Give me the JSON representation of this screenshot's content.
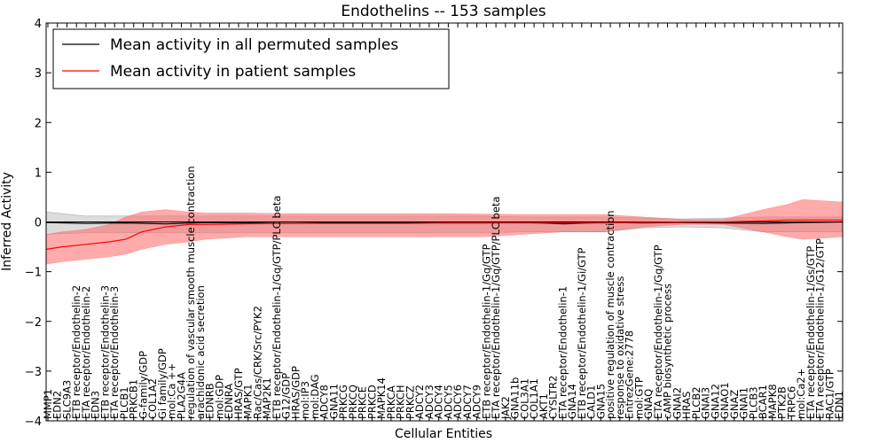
{
  "chart_data": {
    "type": "line",
    "title": "Endothelins -- 153 samples",
    "xlabel": "Cellular Entities",
    "ylabel": "Inferred Activity",
    "ylim": [
      -4,
      4
    ],
    "yticks": [
      "4",
      "3",
      "2",
      "1",
      "0",
      "−1",
      "−2",
      "−3",
      "−4"
    ],
    "ytick_values": [
      4,
      3,
      2,
      1,
      0,
      -1,
      -2,
      -3,
      -4
    ],
    "grid": false,
    "legend_position": "top-left",
    "colors": {
      "permuted": "#000000",
      "patient": "#ff0000",
      "permuted_band": "#bfbfbf",
      "patient_band": "#ff6666",
      "zero_line": "#000000"
    },
    "categories": [
      "MMP1",
      "EDN2",
      "SLC9A3",
      "ETB receptor/Endothelin-2",
      "ETA receptor/Endothelin-2",
      "EDN3",
      "ETB receptor/Endothelin-3",
      "ETA receptor/Endothelin-3",
      "PLCB1",
      "PRKCB1",
      "G-family/GDP",
      "COL1A2",
      "Gi family/GDP",
      "mol:Ca ++",
      "PLA2G4A",
      "regulation of vascular smooth muscle contraction",
      "arachidonic acid secretion",
      "EDNRB",
      "mol:GDP",
      "EDNRA",
      "HRAS/GTP",
      "MAPK1",
      "Rac/Cas/CRK/Src/PYK2",
      "MAP2K1",
      "ETB receptor/Endothelin-1/Gq/GTP/PLC beta",
      "G12/GDP",
      "HRAS/GDP",
      "mol:IP3",
      "mol:DAG",
      "ADCY8",
      "GNA11",
      "PRKCG",
      "PRKCQ",
      "PRKCE",
      "PRKCD",
      "MAPK14",
      "PRKCA",
      "PRKCH",
      "PRKCZ",
      "ADCY2",
      "ADCY3",
      "ADCY4",
      "ADCY5",
      "ADCY6",
      "ADCY7",
      "ADCY9",
      "ETB receptor/Endothelin-1/Gq/GTP",
      "ETA receptor/Endothelin-1/Gq/GTP/PLC beta",
      "JAK2",
      "GNA11b",
      "COL3A1",
      "COL1A1",
      "AKT1",
      "CYSLTR2",
      "ETA receptor/Endothelin-1",
      "GNA14",
      "ETB receptor/Endothelin-1/Gi/GTP",
      "CALD1",
      "GNA15",
      "positive regulation of muscle contraction",
      "response to oxidative stress",
      "EntrezGene:2778",
      "mol:GTP",
      "GNAQ",
      "ETA receptor/Endothelin-1/Gq/GTP",
      "cAMP biosynthetic process",
      "GNAI2",
      "HRAS",
      "PLCB2",
      "GNAI3",
      "GNA12",
      "GNAO1",
      "GNAZ",
      "GNAI1",
      "PLCB3",
      "BCAR1",
      "MAPK8",
      "PTK2B",
      "TRPC6",
      "mol:Ca2+",
      "ETA receptor/Endothelin-1/Gs/GTP",
      "ETA receptor/Endothelin-1/G12/GTP",
      "RAC1/GTP",
      "EDN1"
    ],
    "series": [
      {
        "name": "Mean activity in all permuted samples",
        "x": [
          0,
          0.05,
          0.1,
          0.15,
          0.2,
          0.25,
          0.3,
          0.35,
          0.4,
          0.45,
          0.5,
          0.55,
          0.6,
          0.65,
          0.7,
          0.75,
          0.8,
          0.85,
          0.9,
          0.95,
          1
        ],
        "values": [
          -0.01,
          -0.03,
          -0.02,
          -0.04,
          -0.01,
          -0.02,
          -0.03,
          -0.02,
          -0.02,
          -0.01,
          -0.02,
          -0.02,
          -0.01,
          -0.04,
          -0.01,
          -0.02,
          -0.01,
          -0.02,
          -0.03,
          -0.01,
          0
        ],
        "upper": [
          0.2,
          0.12,
          0.12,
          0.12,
          0.12,
          0.12,
          0.12,
          0.12,
          0.12,
          0.12,
          0.12,
          0.12,
          0.1,
          0.1,
          0.1,
          0.08,
          0.06,
          0.08,
          0.1,
          0.1,
          0.1
        ],
        "lower": [
          -0.25,
          -0.22,
          -0.22,
          -0.22,
          -0.22,
          -0.22,
          -0.22,
          -0.22,
          -0.22,
          -0.22,
          -0.22,
          -0.22,
          -0.2,
          -0.2,
          -0.2,
          -0.12,
          -0.1,
          -0.12,
          -0.2,
          -0.2,
          -0.2
        ]
      },
      {
        "name": "Mean activity in patient samples",
        "x": [
          0,
          0.02,
          0.05,
          0.08,
          0.1,
          0.12,
          0.15,
          0.18,
          0.2,
          0.25,
          0.3,
          0.35,
          0.4,
          0.45,
          0.5,
          0.55,
          0.6,
          0.65,
          0.7,
          0.75,
          0.8,
          0.85,
          0.9,
          0.93,
          0.95,
          1
        ],
        "values": [
          -0.55,
          -0.5,
          -0.45,
          -0.4,
          -0.35,
          -0.2,
          -0.1,
          -0.05,
          -0.05,
          -0.04,
          -0.03,
          -0.03,
          -0.03,
          -0.03,
          -0.02,
          -0.02,
          -0.02,
          -0.02,
          -0.02,
          -0.01,
          0,
          0,
          0.02,
          0.04,
          0.04,
          0.04
        ],
        "upper": [
          -0.25,
          -0.2,
          -0.15,
          -0.05,
          0.1,
          0.2,
          0.25,
          0.2,
          0.18,
          0.18,
          0.17,
          0.17,
          0.17,
          0.17,
          0.17,
          0.16,
          0.15,
          0.15,
          0.15,
          0.1,
          0.05,
          0.05,
          0.25,
          0.35,
          0.45,
          0.4
        ],
        "lower": [
          -0.85,
          -0.8,
          -0.75,
          -0.7,
          -0.65,
          -0.55,
          -0.45,
          -0.4,
          -0.35,
          -0.3,
          -0.3,
          -0.3,
          -0.3,
          -0.3,
          -0.3,
          -0.3,
          -0.25,
          -0.2,
          -0.2,
          -0.1,
          -0.05,
          -0.05,
          -0.2,
          -0.3,
          -0.35,
          -0.3
        ]
      }
    ]
  }
}
